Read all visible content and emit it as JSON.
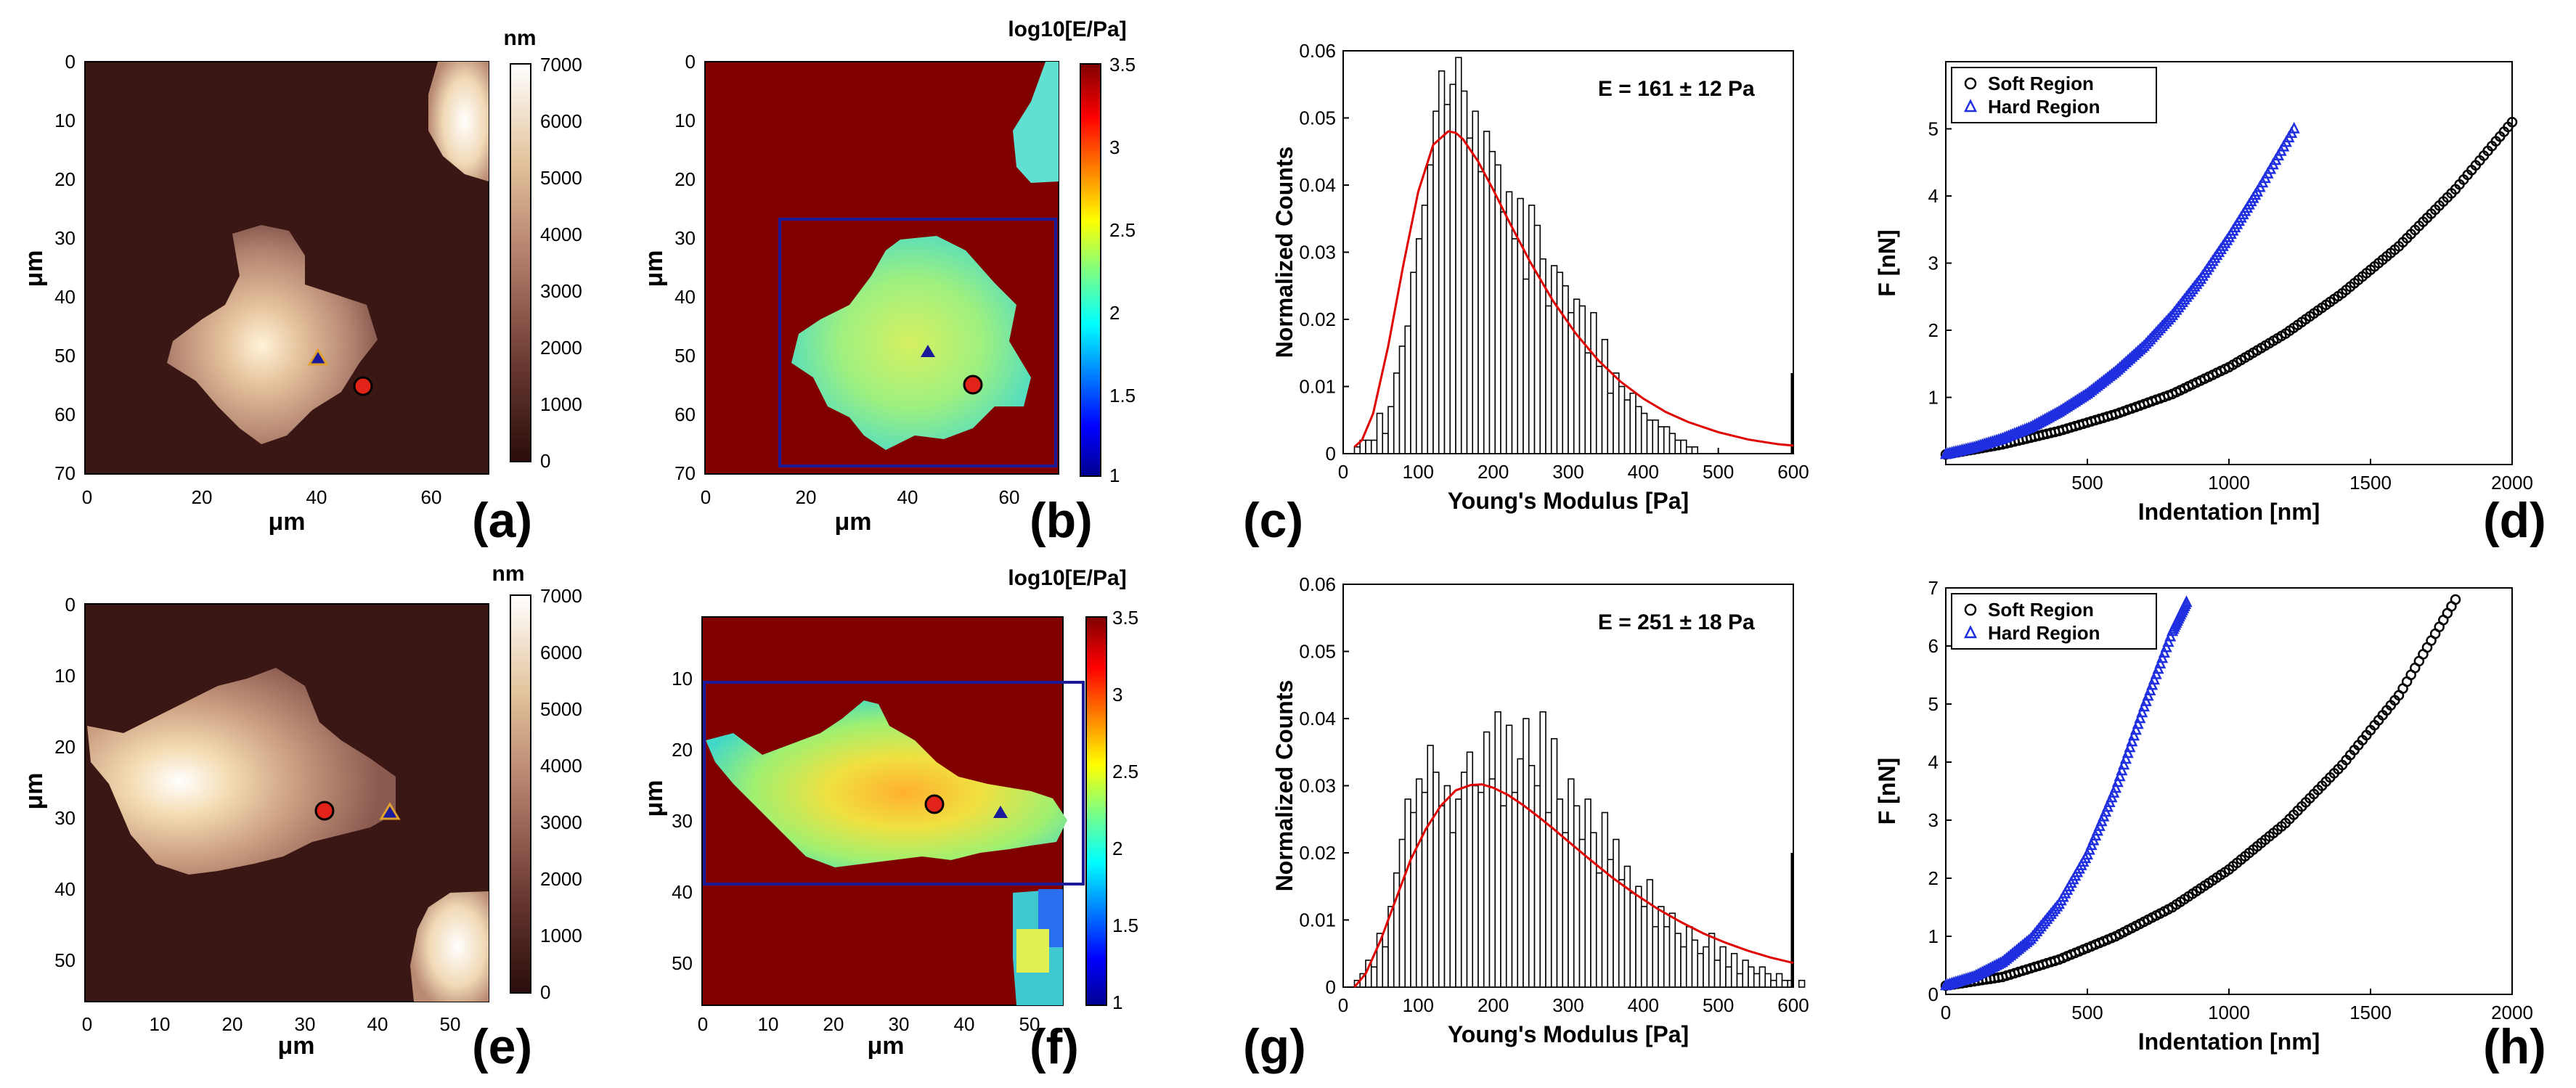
{
  "colors": {
    "background": "#ffffff",
    "axis": "#000000",
    "fit_line": "#e00000",
    "hard_series": "#1f2fe0",
    "soft_series": "#000000",
    "roi_box": "#1a1a9a",
    "marker_circle": "#e2231a",
    "marker_triangle": "#1a1a9a"
  },
  "panels": {
    "a": {
      "letter": "(a)",
      "xlabel": "μm",
      "ylabel": "μm",
      "colorbar_label": "nm",
      "xticks": [
        "0",
        "20",
        "40",
        "60"
      ],
      "yticks": [
        "0",
        "10",
        "20",
        "30",
        "40",
        "50",
        "60",
        "70"
      ],
      "cbar_ticks": [
        "7000",
        "6000",
        "5000",
        "4000",
        "3000",
        "2000",
        "1000",
        "0"
      ]
    },
    "b": {
      "letter": "(b)",
      "xlabel": "μm",
      "ylabel": "μm",
      "colorbar_label": "log10[E/Pa]",
      "xticks": [
        "0",
        "20",
        "40",
        "60"
      ],
      "yticks": [
        "0",
        "10",
        "20",
        "30",
        "40",
        "50",
        "60",
        "70"
      ],
      "cbar_ticks": [
        "3.5",
        "3",
        "2.5",
        "2",
        "1.5",
        "1"
      ]
    },
    "e": {
      "letter": "(e)",
      "xlabel": "μm",
      "ylabel": "μm",
      "colorbar_label": "nm",
      "xticks": [
        "0",
        "10",
        "20",
        "30",
        "40",
        "50"
      ],
      "yticks": [
        "0",
        "10",
        "20",
        "30",
        "40",
        "50"
      ],
      "cbar_ticks": [
        "7000",
        "6000",
        "5000",
        "4000",
        "3000",
        "2000",
        "1000",
        "0"
      ]
    },
    "f": {
      "letter": "(f)",
      "xlabel": "μm",
      "ylabel": "μm",
      "colorbar_label": "log10[E/Pa]",
      "xticks": [
        "0",
        "10",
        "20",
        "30",
        "40",
        "50"
      ],
      "yticks": [
        "10",
        "20",
        "30",
        "40",
        "50"
      ],
      "cbar_ticks": [
        "3.5",
        "3",
        "2.5",
        "2",
        "1.5",
        "1"
      ]
    },
    "c": {
      "letter": "(c)"
    },
    "g": {
      "letter": "(g)"
    },
    "d": {
      "letter": "(d)"
    },
    "h": {
      "letter": "(h)"
    }
  },
  "chart_data": [
    {
      "id": "c",
      "type": "bar",
      "title": "",
      "annotation": "E = 161 ± 12 Pa",
      "xlabel": "Young's Modulus [Pa]",
      "ylabel": "Normalized Counts",
      "xlim": [
        0,
        600
      ],
      "ylim": [
        0,
        0.06
      ],
      "xticks": [
        0,
        100,
        200,
        300,
        400,
        500,
        600
      ],
      "yticks": [
        0,
        0.01,
        0.02,
        0.03,
        0.04,
        0.05,
        0.06
      ],
      "bin_width": 7.5,
      "bin_start": 15,
      "values": [
        0.001,
        0.002,
        0.002,
        0.002,
        0.006,
        0.003,
        0.007,
        0.012,
        0.016,
        0.019,
        0.027,
        0.032,
        0.037,
        0.043,
        0.051,
        0.057,
        0.052,
        0.055,
        0.059,
        0.054,
        0.047,
        0.051,
        0.042,
        0.048,
        0.045,
        0.043,
        0.036,
        0.039,
        0.032,
        0.038,
        0.026,
        0.037,
        0.034,
        0.029,
        0.022,
        0.028,
        0.027,
        0.025,
        0.021,
        0.023,
        0.022,
        0.015,
        0.021,
        0.013,
        0.017,
        0.009,
        0.012,
        0.01,
        0.008,
        0.009,
        0.007,
        0.006,
        0.005,
        0.005,
        0.004,
        0.004,
        0.003,
        0.002,
        0.002,
        0.001,
        0.001,
        0.0,
        0.0,
        0.0,
        0.0,
        0.0,
        0.0,
        0.0,
        0.0,
        0.0,
        0.0,
        0.0,
        0.0,
        0.0,
        0.0,
        0.0,
        0.0,
        0.0,
        0.0,
        0.0
      ],
      "fit": {
        "x": [
          15,
          25,
          40,
          60,
          80,
          100,
          120,
          140,
          150,
          160,
          180,
          200,
          220,
          250,
          280,
          310,
          340,
          370,
          400,
          430,
          460,
          500,
          540,
          580,
          600
        ],
        "y": [
          0.001,
          0.002,
          0.006,
          0.016,
          0.028,
          0.039,
          0.046,
          0.048,
          0.0478,
          0.0468,
          0.0435,
          0.0393,
          0.0348,
          0.0284,
          0.0227,
          0.0179,
          0.0139,
          0.0107,
          0.0082,
          0.0062,
          0.0047,
          0.0032,
          0.0021,
          0.0014,
          0.0012
        ]
      },
      "edge_bar": {
        "x": 600,
        "value": 0.012
      }
    },
    {
      "id": "g",
      "type": "bar",
      "title": "",
      "annotation": "E = 251 ± 18 Pa",
      "xlabel": "Young's Modulus [Pa]",
      "ylabel": "Normalized Counts",
      "xlim": [
        0,
        600
      ],
      "ylim": [
        0,
        0.06
      ],
      "xticks": [
        0,
        100,
        200,
        300,
        400,
        500,
        600
      ],
      "yticks": [
        0,
        0.01,
        0.02,
        0.03,
        0.04,
        0.05,
        0.06
      ],
      "bin_width": 7.5,
      "bin_start": 15,
      "values": [
        0.001,
        0.002,
        0.004,
        0.003,
        0.008,
        0.006,
        0.012,
        0.017,
        0.022,
        0.028,
        0.026,
        0.031,
        0.029,
        0.036,
        0.032,
        0.027,
        0.03,
        0.023,
        0.028,
        0.032,
        0.035,
        0.03,
        0.029,
        0.038,
        0.031,
        0.041,
        0.027,
        0.039,
        0.029,
        0.034,
        0.04,
        0.033,
        0.03,
        0.041,
        0.026,
        0.037,
        0.028,
        0.023,
        0.031,
        0.027,
        0.022,
        0.028,
        0.023,
        0.017,
        0.026,
        0.019,
        0.022,
        0.016,
        0.018,
        0.014,
        0.015,
        0.012,
        0.016,
        0.009,
        0.012,
        0.009,
        0.011,
        0.008,
        0.006,
        0.009,
        0.007,
        0.005,
        0.006,
        0.008,
        0.004,
        0.006,
        0.003,
        0.005,
        0.002,
        0.004,
        0.003,
        0.002,
        0.003,
        0.002,
        0.001,
        0.002,
        0.001,
        0.001,
        0.0,
        0.001
      ],
      "fit": {
        "x": [
          15,
          30,
          50,
          70,
          90,
          110,
          130,
          150,
          170,
          185,
          200,
          220,
          240,
          260,
          280,
          300,
          330,
          360,
          390,
          420,
          450,
          480,
          510,
          540,
          570,
          600
        ],
        "y": [
          0.0,
          0.002,
          0.007,
          0.013,
          0.019,
          0.0235,
          0.027,
          0.0293,
          0.0301,
          0.0302,
          0.0297,
          0.0286,
          0.0271,
          0.0254,
          0.0236,
          0.0217,
          0.0189,
          0.0162,
          0.0138,
          0.0116,
          0.0097,
          0.008,
          0.0066,
          0.0054,
          0.0044,
          0.0036
        ]
      },
      "edge_bar": {
        "x": 600,
        "value": 0.02
      }
    },
    {
      "id": "d",
      "type": "scatter",
      "title": "",
      "xlabel": "Indentation [nm]",
      "ylabel": "F [nN]",
      "xlim": [
        0,
        2000
      ],
      "ylim": [
        0,
        6
      ],
      "xticks": [
        500,
        1000,
        1500,
        2000
      ],
      "yticks": [
        1,
        2,
        3,
        4,
        5
      ],
      "legend_position": "top-left",
      "series": [
        {
          "name": "Soft Region",
          "marker": "circle",
          "color": "#000000",
          "x": [
            0,
            200,
            400,
            600,
            800,
            1000,
            1200,
            1400,
            1600,
            1800,
            2000
          ],
          "y": [
            0.15,
            0.3,
            0.5,
            0.75,
            1.05,
            1.45,
            1.95,
            2.55,
            3.25,
            4.1,
            5.1
          ]
        },
        {
          "name": "Hard Region",
          "marker": "triangle",
          "color": "#1f2fe0",
          "x": [
            0,
            100,
            200,
            300,
            400,
            500,
            600,
            700,
            800,
            900,
            1000,
            1100,
            1230
          ],
          "y": [
            0.15,
            0.25,
            0.38,
            0.55,
            0.78,
            1.05,
            1.38,
            1.76,
            2.22,
            2.76,
            3.38,
            4.06,
            5.0
          ]
        }
      ]
    },
    {
      "id": "h",
      "type": "scatter",
      "title": "",
      "xlabel": "Indentation [nm]",
      "ylabel": "F [nN]",
      "xlim": [
        0,
        2000
      ],
      "ylim": [
        0,
        7
      ],
      "xticks": [
        0,
        500,
        1000,
        1500,
        2000
      ],
      "yticks": [
        0,
        1,
        2,
        3,
        4,
        5,
        6,
        7
      ],
      "legend_position": "top-left",
      "series": [
        {
          "name": "Soft Region",
          "marker": "circle",
          "color": "#000000",
          "x": [
            0,
            200,
            400,
            600,
            800,
            1000,
            1200,
            1400,
            1600,
            1800
          ],
          "y": [
            0.15,
            0.3,
            0.6,
            1.0,
            1.5,
            2.15,
            2.95,
            3.95,
            5.15,
            6.8
          ]
        },
        {
          "name": "Hard Region",
          "marker": "triangle",
          "color": "#1f2fe0",
          "x": [
            0,
            100,
            200,
            300,
            400,
            500,
            600,
            700,
            800,
            850
          ],
          "y": [
            0.15,
            0.3,
            0.55,
            0.95,
            1.55,
            2.4,
            3.55,
            4.95,
            6.25,
            6.75
          ]
        }
      ]
    }
  ]
}
